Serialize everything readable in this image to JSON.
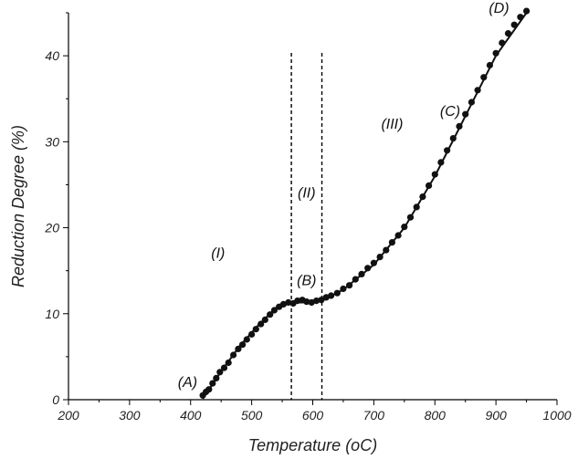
{
  "chart_data": {
    "type": "scatter",
    "xlabel": "Temperature (oC)",
    "ylabel": "Reduction Degree (%)",
    "xlim": [
      200,
      1000
    ],
    "ylim": [
      0,
      45
    ],
    "x_ticks": [
      200,
      300,
      400,
      500,
      600,
      700,
      800,
      900,
      1000
    ],
    "y_ticks": [
      0,
      10,
      20,
      30,
      40
    ],
    "grid": false,
    "legend": "none",
    "marker_color": "#111111",
    "fit_line_color": "#111111",
    "series": [
      {
        "points": [
          [
            420,
            0.5
          ],
          [
            425,
            0.9
          ],
          [
            430,
            1.2
          ],
          [
            436,
            1.9
          ],
          [
            442,
            2.5
          ],
          [
            448,
            3.2
          ],
          [
            455,
            3.7
          ],
          [
            462,
            4.3
          ],
          [
            470,
            5.2
          ],
          [
            478,
            5.9
          ],
          [
            485,
            6.4
          ],
          [
            492,
            7.0
          ],
          [
            500,
            7.6
          ],
          [
            507,
            8.2
          ],
          [
            515,
            8.8
          ],
          [
            522,
            9.3
          ],
          [
            530,
            9.9
          ],
          [
            537,
            10.4
          ],
          [
            545,
            10.8
          ],
          [
            552,
            11.1
          ],
          [
            560,
            11.3
          ],
          [
            568,
            11.2
          ],
          [
            575,
            11.5
          ],
          [
            583,
            11.6
          ],
          [
            590,
            11.4
          ],
          [
            598,
            11.3
          ],
          [
            606,
            11.5
          ],
          [
            614,
            11.6
          ],
          [
            622,
            11.9
          ],
          [
            630,
            12.1
          ],
          [
            640,
            12.4
          ],
          [
            650,
            12.9
          ],
          [
            660,
            13.3
          ],
          [
            670,
            14.0
          ],
          [
            680,
            14.6
          ],
          [
            690,
            15.3
          ],
          [
            700,
            15.9
          ],
          [
            710,
            16.6
          ],
          [
            720,
            17.4
          ],
          [
            730,
            18.3
          ],
          [
            740,
            19.1
          ],
          [
            750,
            20.1
          ],
          [
            760,
            21.2
          ],
          [
            770,
            22.4
          ],
          [
            780,
            23.6
          ],
          [
            790,
            24.9
          ],
          [
            800,
            26.2
          ],
          [
            810,
            27.6
          ],
          [
            820,
            29.0
          ],
          [
            830,
            30.4
          ],
          [
            840,
            31.8
          ],
          [
            850,
            33.2
          ],
          [
            860,
            34.6
          ],
          [
            870,
            36.0
          ],
          [
            880,
            37.5
          ],
          [
            890,
            38.9
          ],
          [
            900,
            40.3
          ],
          [
            910,
            41.5
          ],
          [
            920,
            42.6
          ],
          [
            930,
            43.6
          ],
          [
            940,
            44.5
          ],
          [
            950,
            45.2
          ]
        ]
      }
    ],
    "fit_line": [
      [
        420,
        0.1
      ],
      [
        450,
        3.3
      ],
      [
        480,
        6.2
      ],
      [
        510,
        8.6
      ],
      [
        540,
        10.7
      ],
      [
        565,
        11.3
      ],
      [
        590,
        11.3
      ],
      [
        615,
        11.5
      ],
      [
        650,
        12.8
      ],
      [
        700,
        15.7
      ],
      [
        750,
        20.0
      ],
      [
        800,
        26.0
      ],
      [
        850,
        33.0
      ],
      [
        900,
        40.0
      ],
      [
        950,
        45.0
      ]
    ],
    "reference_lines": [
      {
        "x": 565,
        "style": "dashed"
      },
      {
        "x": 615,
        "style": "dashed"
      }
    ],
    "annotations": [
      {
        "text": "(A)",
        "x": 395,
        "y": 1.5
      },
      {
        "text": "(I)",
        "x": 445,
        "y": 16.5
      },
      {
        "text": "(B)",
        "x": 590,
        "y": 13.3
      },
      {
        "text": "(II)",
        "x": 590,
        "y": 23.5
      },
      {
        "text": "(III)",
        "x": 730,
        "y": 31.5
      },
      {
        "text": "(C)",
        "x": 825,
        "y": 33.0
      },
      {
        "text": "(D)",
        "x": 905,
        "y": 45.0
      }
    ]
  }
}
